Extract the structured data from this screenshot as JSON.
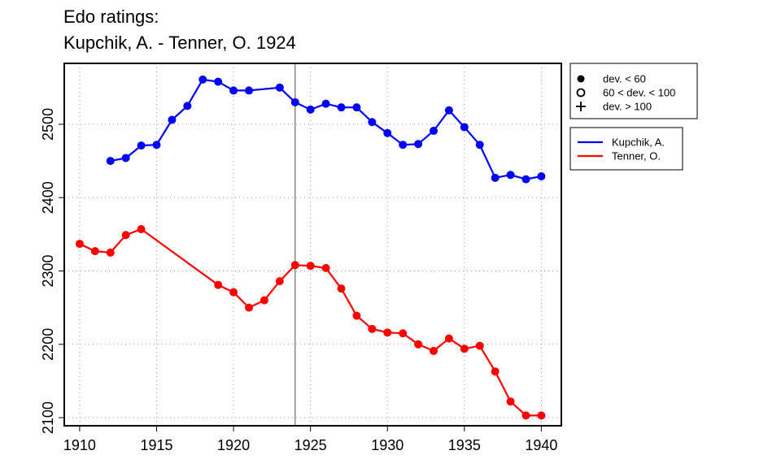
{
  "chart_data": {
    "type": "line",
    "title_line1": "Edo ratings:",
    "title_line2": "Kupchik, A. - Tenner, O. 1924",
    "xlabel": "",
    "ylabel": "",
    "xlim": [
      1909,
      1941.3
    ],
    "ylim": [
      2089,
      2583
    ],
    "xticks": [
      1910,
      1915,
      1920,
      1925,
      1930,
      1935,
      1940
    ],
    "yticks": [
      2100,
      2200,
      2300,
      2400,
      2500
    ],
    "grid": true,
    "vline_x": 1924,
    "symbol_legend": {
      "placement": "top-right-outside",
      "entries": [
        {
          "symbol": "filled-circle",
          "label": "dev. < 60"
        },
        {
          "symbol": "open-circle",
          "label": "60 < dev. < 100"
        },
        {
          "symbol": "plus",
          "label": "dev. > 100"
        }
      ]
    },
    "series_legend": {
      "placement": "right-outside"
    },
    "series": [
      {
        "name": "Kupchik, A.",
        "color": "#0000ff",
        "segments": [
          [
            [
              1912,
              2450
            ],
            [
              1913,
              2454
            ],
            [
              1914,
              2471
            ],
            [
              1915,
              2472
            ],
            [
              1916,
              2506
            ],
            [
              1917,
              2525
            ],
            [
              1918,
              2561
            ],
            [
              1919,
              2558
            ],
            [
              1920,
              2546
            ],
            [
              1921,
              2546
            ],
            [
              1923,
              2550
            ],
            [
              1924,
              2530
            ],
            [
              1925,
              2520
            ],
            [
              1926,
              2528
            ],
            [
              1927,
              2523
            ],
            [
              1928,
              2523
            ],
            [
              1929,
              2503
            ],
            [
              1930,
              2488
            ],
            [
              1931,
              2472
            ],
            [
              1932,
              2473
            ],
            [
              1933,
              2491
            ],
            [
              1934,
              2519
            ],
            [
              1935,
              2496
            ],
            [
              1936,
              2472
            ],
            [
              1937,
              2427
            ],
            [
              1938,
              2431
            ],
            [
              1939,
              2425
            ],
            [
              1940,
              2429
            ]
          ]
        ]
      },
      {
        "name": "Tenner, O.",
        "color": "#ff0000",
        "segments": [
          [
            [
              1910,
              2337
            ],
            [
              1911,
              2327
            ],
            [
              1912,
              2325
            ],
            [
              1913,
              2349
            ],
            [
              1914,
              2357
            ],
            [
              1919,
              2281
            ],
            [
              1920,
              2271
            ],
            [
              1921,
              2250
            ],
            [
              1922,
              2260
            ],
            [
              1923,
              2286
            ],
            [
              1924,
              2308
            ],
            [
              1925,
              2307
            ],
            [
              1926,
              2304
            ],
            [
              1927,
              2276
            ],
            [
              1928,
              2239
            ],
            [
              1929,
              2221
            ],
            [
              1930,
              2216
            ],
            [
              1931,
              2215
            ],
            [
              1932,
              2200
            ],
            [
              1933,
              2191
            ],
            [
              1934,
              2208
            ],
            [
              1935,
              2194
            ],
            [
              1936,
              2198
            ],
            [
              1937,
              2163
            ],
            [
              1938,
              2122
            ],
            [
              1939,
              2103
            ],
            [
              1940,
              2103
            ]
          ]
        ]
      }
    ]
  }
}
